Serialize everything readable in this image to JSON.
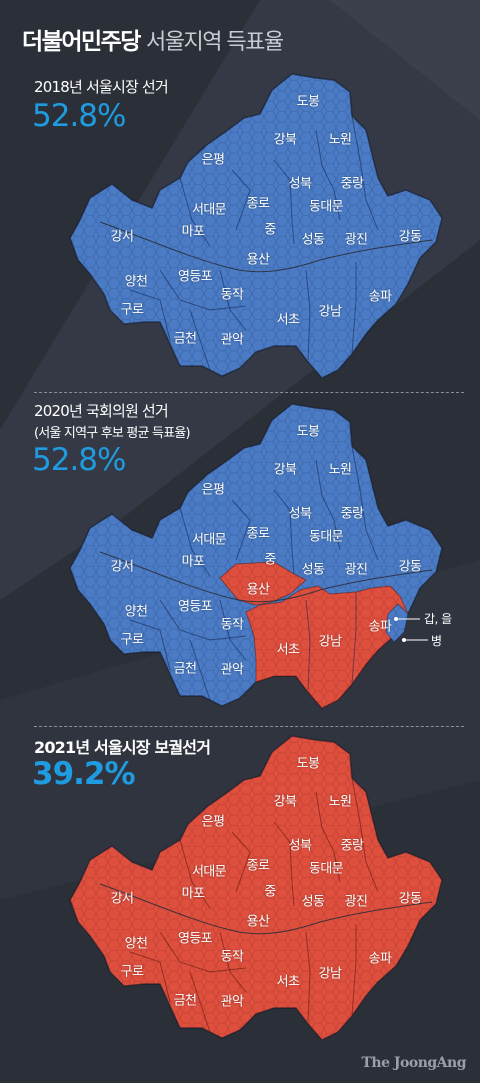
{
  "header": {
    "title_main": "더불어민주당",
    "title_sub": "서울지역 득표율"
  },
  "colors": {
    "background": "#2b2f38",
    "accent_blue_text": "#1f9be0",
    "democratic_blue": "#4a7bc4",
    "opposition_red": "#de4f3e"
  },
  "sections": [
    {
      "label": "2018년 서울시장 선거",
      "sublabel": "",
      "value": "52.8%",
      "map_color": "blue"
    },
    {
      "label": "2020년 국회의원 선거",
      "sublabel": "(서울 지역구 후보 평균 득표율)",
      "value": "52.8%",
      "map_color": "mixed",
      "red_districts": [
        "용산",
        "서초",
        "강남",
        "송파 (갑, 을)"
      ],
      "callout_upper": "갑, 을",
      "callout_lower": "병"
    },
    {
      "label": "2021년 서울시장 보궐선거",
      "sublabel": "",
      "value": "39.2%",
      "map_color": "red"
    }
  ],
  "districts": [
    {
      "name": "도봉"
    },
    {
      "name": "강북"
    },
    {
      "name": "노원"
    },
    {
      "name": "은평"
    },
    {
      "name": "성북"
    },
    {
      "name": "중랑"
    },
    {
      "name": "종로"
    },
    {
      "name": "서대문"
    },
    {
      "name": "동대문"
    },
    {
      "name": "강서"
    },
    {
      "name": "마포"
    },
    {
      "name": "중"
    },
    {
      "name": "성동"
    },
    {
      "name": "광진"
    },
    {
      "name": "강동"
    },
    {
      "name": "용산"
    },
    {
      "name": "양천"
    },
    {
      "name": "영등포"
    },
    {
      "name": "동작"
    },
    {
      "name": "구로"
    },
    {
      "name": "서초"
    },
    {
      "name": "강남"
    },
    {
      "name": "송파"
    },
    {
      "name": "금천"
    },
    {
      "name": "관악"
    }
  ],
  "credit": "The JoongAng"
}
